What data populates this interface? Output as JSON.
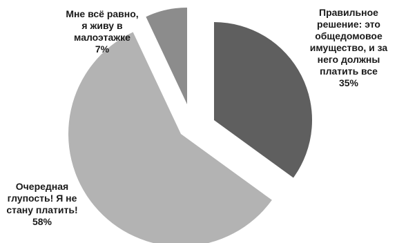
{
  "chart_data": {
    "type": "pie",
    "exploded": true,
    "series": [
      {
        "slices": [
          {
            "label": "Правильное решение: это общедомовое имущество, и за него должны платить все",
            "value": 35,
            "value_label": "35%",
            "color": "#5f5f5f"
          },
          {
            "label": "Очередная глупость! Я не стану платить!",
            "value": 58,
            "value_label": "58%",
            "color": "#b3b3b3"
          },
          {
            "label": "Мне всё равно, я живу в малоэтажке",
            "value": 7,
            "value_label": "7%",
            "color": "#8c8c8c"
          }
        ]
      }
    ],
    "legend": "none"
  }
}
